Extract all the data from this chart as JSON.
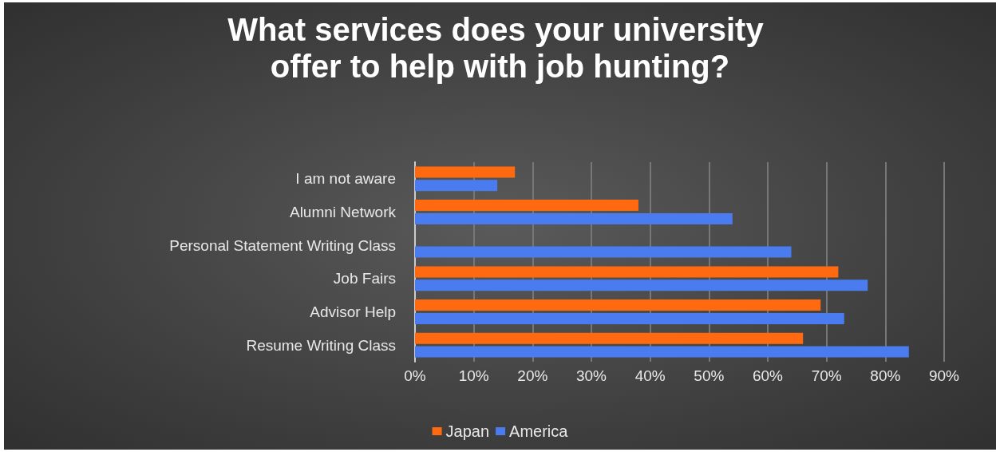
{
  "chart_data": {
    "type": "bar",
    "orientation": "horizontal",
    "title": "What services does your university offer to help with job hunting?",
    "categories": [
      "I am not aware",
      "Alumni Network",
      "Personal Statement Writing Class",
      "Job Fairs",
      "Advisor Help",
      "Resume Writing Class"
    ],
    "series": [
      {
        "name": "Japan",
        "color": "#ff6a10",
        "values": [
          17,
          38,
          0,
          72,
          69,
          66
        ]
      },
      {
        "name": "America",
        "color": "#4a7cf0",
        "values": [
          14,
          54,
          64,
          77,
          73,
          84
        ]
      }
    ],
    "xlim": [
      0,
      90
    ],
    "xticks": [
      {
        "value": 0,
        "label": "0%"
      },
      {
        "value": 10,
        "label": "10%"
      },
      {
        "value": 20,
        "label": "20%"
      },
      {
        "value": 30,
        "label": "30%"
      },
      {
        "value": 40,
        "label": "40%"
      },
      {
        "value": 50,
        "label": "50%"
      },
      {
        "value": 60,
        "label": "60%"
      },
      {
        "value": 70,
        "label": "70%"
      },
      {
        "value": 80,
        "label": "80%"
      },
      {
        "value": 90,
        "label": "90%"
      }
    ],
    "grid": "x",
    "legend": "bottom"
  }
}
